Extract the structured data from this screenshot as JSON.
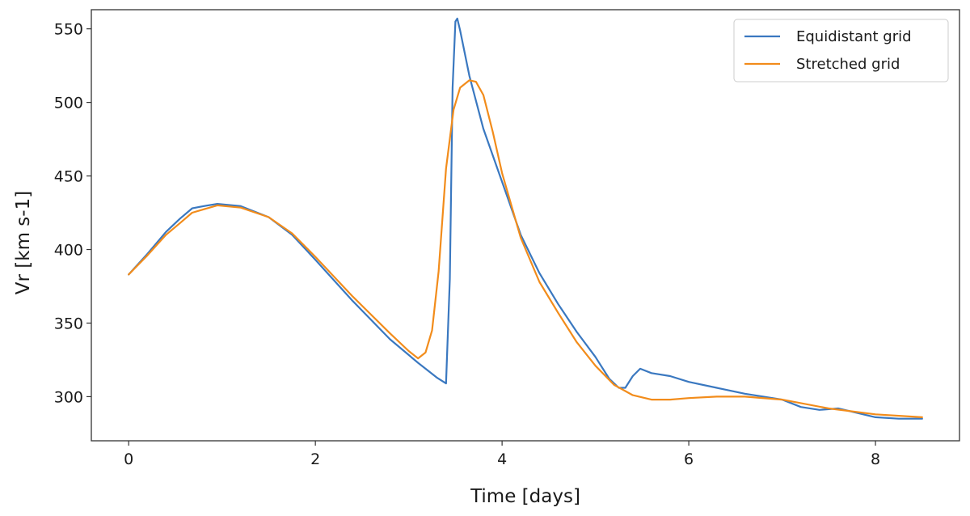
{
  "chart_data": {
    "type": "line",
    "title": "",
    "xlabel": "Time [days]",
    "ylabel": "Vr [km s-1]",
    "xlim": [
      -0.4,
      8.9
    ],
    "ylim": [
      270,
      563
    ],
    "xticks": [
      0,
      2,
      4,
      6,
      8
    ],
    "yticks": [
      300,
      350,
      400,
      450,
      500,
      550
    ],
    "grid": false,
    "legend_position": "top-right",
    "series": [
      {
        "name": "Equidistant grid",
        "color": "#3a78c0",
        "points": [
          [
            0.0,
            383
          ],
          [
            0.2,
            397
          ],
          [
            0.4,
            412
          ],
          [
            0.55,
            421
          ],
          [
            0.68,
            428
          ],
          [
            0.8,
            429.5
          ],
          [
            0.95,
            431
          ],
          [
            1.2,
            429.5
          ],
          [
            1.5,
            422
          ],
          [
            1.75,
            410
          ],
          [
            2.0,
            393
          ],
          [
            2.4,
            365
          ],
          [
            2.8,
            339
          ],
          [
            3.1,
            323
          ],
          [
            3.3,
            313
          ],
          [
            3.4,
            309
          ],
          [
            3.44,
            380
          ],
          [
            3.47,
            510
          ],
          [
            3.5,
            555
          ],
          [
            3.52,
            557
          ],
          [
            3.55,
            549
          ],
          [
            3.65,
            518
          ],
          [
            3.8,
            482
          ],
          [
            4.0,
            446
          ],
          [
            4.2,
            410
          ],
          [
            4.4,
            384
          ],
          [
            4.6,
            363
          ],
          [
            4.8,
            344
          ],
          [
            5.0,
            327
          ],
          [
            5.15,
            312
          ],
          [
            5.25,
            306
          ],
          [
            5.32,
            306
          ],
          [
            5.4,
            314
          ],
          [
            5.48,
            319
          ],
          [
            5.6,
            316
          ],
          [
            5.8,
            314
          ],
          [
            6.0,
            310
          ],
          [
            6.3,
            306
          ],
          [
            6.6,
            302
          ],
          [
            6.8,
            300
          ],
          [
            7.0,
            298
          ],
          [
            7.2,
            293
          ],
          [
            7.4,
            291
          ],
          [
            7.6,
            292
          ],
          [
            7.8,
            289
          ],
          [
            8.0,
            286
          ],
          [
            8.25,
            285
          ],
          [
            8.5,
            285
          ]
        ]
      },
      {
        "name": "Stretched grid",
        "color": "#f28c1b",
        "points": [
          [
            0.0,
            383
          ],
          [
            0.2,
            396
          ],
          [
            0.4,
            410
          ],
          [
            0.55,
            418
          ],
          [
            0.68,
            425
          ],
          [
            0.95,
            430
          ],
          [
            1.2,
            428.5
          ],
          [
            1.5,
            422
          ],
          [
            1.75,
            411
          ],
          [
            2.0,
            395
          ],
          [
            2.4,
            368
          ],
          [
            2.8,
            343
          ],
          [
            3.0,
            331
          ],
          [
            3.1,
            326
          ],
          [
            3.18,
            330
          ],
          [
            3.25,
            345
          ],
          [
            3.32,
            385
          ],
          [
            3.4,
            455
          ],
          [
            3.48,
            495
          ],
          [
            3.55,
            510
          ],
          [
            3.65,
            515
          ],
          [
            3.72,
            514
          ],
          [
            3.8,
            505
          ],
          [
            3.9,
            480
          ],
          [
            4.0,
            452
          ],
          [
            4.2,
            408
          ],
          [
            4.4,
            378
          ],
          [
            4.6,
            357
          ],
          [
            4.8,
            337
          ],
          [
            5.0,
            321
          ],
          [
            5.2,
            308
          ],
          [
            5.4,
            301
          ],
          [
            5.6,
            298
          ],
          [
            5.8,
            298
          ],
          [
            6.0,
            299
          ],
          [
            6.3,
            300
          ],
          [
            6.6,
            300
          ],
          [
            7.0,
            298
          ],
          [
            7.5,
            292
          ],
          [
            8.0,
            288
          ],
          [
            8.5,
            286
          ]
        ]
      }
    ]
  }
}
